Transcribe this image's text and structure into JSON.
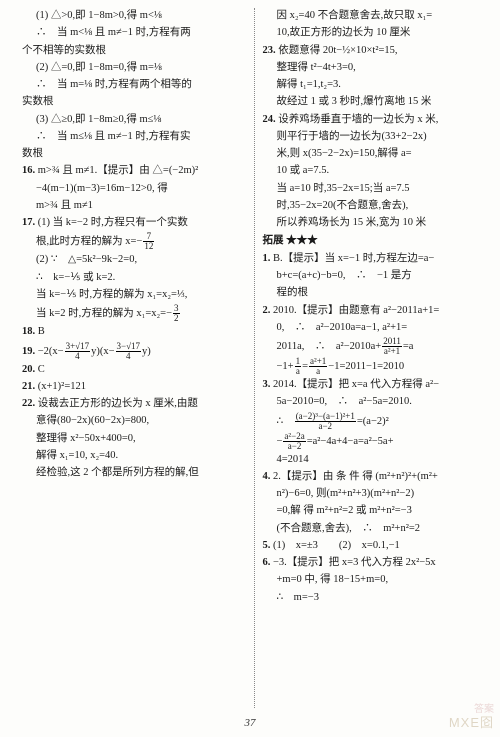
{
  "pageNumber": "37",
  "watermark1": "MXE囵",
  "watermark2": "答案",
  "leftColumn": [
    {
      "cls": "indent1",
      "text": "(1) △>0,即 1−8m>0,得 m<⅛"
    },
    {
      "cls": "indent1",
      "text": "∴　当 m<⅛ 且 m≠−1 时,方程有两"
    },
    {
      "cls": "",
      "text": "个不相等的实数根"
    },
    {
      "cls": "indent1",
      "text": "(2) △=0,即 1−8m=0,得 m=⅛"
    },
    {
      "cls": "indent1",
      "text": "∴　当 m=⅛ 时,方程有两个相等的"
    },
    {
      "cls": "",
      "text": "实数根"
    },
    {
      "cls": "indent1",
      "text": "(3) △≥0,即 1−8m≥0,得 m≤⅛"
    },
    {
      "cls": "indent1",
      "text": "∴　当 m≤⅛ 且 m≠−1 时,方程有实"
    },
    {
      "cls": "",
      "text": "数根"
    },
    {
      "cls": "",
      "html": "<span class='num'>16.</span> m>¾ 且 m≠1.【提示】由 △=(−2m)²"
    },
    {
      "cls": "indent1",
      "text": "−4(m−1)(m−3)=16m−12>0, 得"
    },
    {
      "cls": "indent1",
      "text": "m>¾ 且 m≠1"
    },
    {
      "cls": "",
      "html": "<span class='num'>17.</span> (1) 当 k=−2 时,方程只有一个实数"
    },
    {
      "cls": "indent1",
      "html": "根,此时方程的解为 x=−<span class='frac'><span class='n'>7</span><span class='d'>12</span></span>"
    },
    {
      "cls": "indent1",
      "text": "(2) ∵　△=5k²−9k−2=0,"
    },
    {
      "cls": "indent1",
      "text": "∴　k=−⅕ 或 k=2."
    },
    {
      "cls": "indent1",
      "text": "当 k=−⅕ 时,方程的解为 x₁=x₂=⅓,"
    },
    {
      "cls": "indent1",
      "html": "当 k=2 时,方程的解为 x₁=x₂=−<span class='frac'><span class='n'>3</span><span class='d'>2</span></span>"
    },
    {
      "cls": "",
      "html": "<span class='num'>18.</span> B"
    },
    {
      "cls": "",
      "html": "<span class='num'>19.</span> −2(x−<span class='frac'><span class='n'>3+√17</span><span class='d'>4</span></span>y)(x−<span class='frac'><span class='n'>3−√17</span><span class='d'>4</span></span>y)"
    },
    {
      "cls": "",
      "html": "<span class='num'>20.</span> C"
    },
    {
      "cls": "",
      "html": "<span class='num'>21.</span> (x+1)²=121"
    },
    {
      "cls": "",
      "html": "<span class='num'>22.</span> 设裁去正方形的边长为 x 厘米,由题"
    },
    {
      "cls": "indent1",
      "text": "意得(80−2x)(60−2x)=800,"
    },
    {
      "cls": "indent1",
      "text": "整理得 x²−50x+400=0,"
    },
    {
      "cls": "indent1",
      "text": "解得 x₁=10, x₂=40."
    },
    {
      "cls": "indent1",
      "text": "经检验,这 2 个都是所列方程的解,但"
    }
  ],
  "rightColumn": [
    {
      "cls": "indent1",
      "text": "因 x₂=40 不合题意舍去,故只取 x₁="
    },
    {
      "cls": "indent1",
      "text": "10,故正方形的边长为 10 厘米"
    },
    {
      "cls": "",
      "html": "<span class='num'>23.</span> 依题意得 20t−½×10×t²=15,"
    },
    {
      "cls": "indent1",
      "text": "整理得 t²−4t+3=0,"
    },
    {
      "cls": "indent1",
      "text": "解得 t₁=1,t₂=3."
    },
    {
      "cls": "indent1",
      "text": "故经过 1 或 3 秒时,爆竹离地 15 米"
    },
    {
      "cls": "",
      "html": "<span class='num'>24.</span> 设养鸡场垂直于墙的一边长为 x 米,"
    },
    {
      "cls": "indent1",
      "text": "则平行于墙的一边长为(33+2−2x)"
    },
    {
      "cls": "indent1",
      "text": "米,则 x(35−2−2x)=150,解得 a="
    },
    {
      "cls": "indent1",
      "text": "10 或 a=7.5."
    },
    {
      "cls": "indent1",
      "text": "当 a=10 时,35−2x=15;当 a=7.5"
    },
    {
      "cls": "indent1",
      "text": "时,35−2x=20(不合题意,舍去),"
    },
    {
      "cls": "indent1",
      "text": "所以养鸡场长为 15 米,宽为 10 米"
    },
    {
      "cls": "section-hdr",
      "text": "拓展 ★★★"
    },
    {
      "cls": "",
      "html": "<span class='num'>1.</span> B.【提示】当 x=−1 时,方程左边=a−"
    },
    {
      "cls": "indent1",
      "text": "b+c=(a+c)−b=0,　∴　−1 是方"
    },
    {
      "cls": "indent1",
      "text": "程的根"
    },
    {
      "cls": "",
      "html": "<span class='num'>2.</span> 2010.【提示】由题意有 a²−2011a+1="
    },
    {
      "cls": "indent1",
      "text": "0,　∴　a²−2010a=a−1, a²+1="
    },
    {
      "cls": "indent1",
      "html": "2011a,　∴　a²−2010a+<span class='frac'><span class='n'>2011</span><span class='d'>a²+1</span></span>=a"
    },
    {
      "cls": "indent1",
      "html": "−1+<span class='frac'><span class='n'>1</span><span class='d'>a</span></span>=<span class='frac'><span class='n'>a²+1</span><span class='d'>a</span></span>−1=2011−1=2010"
    },
    {
      "cls": "",
      "html": "<span class='num'>3.</span> 2014.【提示】把 x=a 代入方程得 a²−"
    },
    {
      "cls": "indent1",
      "text": "5a−2010=0,　∴　a²−5a=2010."
    },
    {
      "cls": "indent1",
      "html": "∴　<span class='frac'><span class='n'>(a−2)³−(a−1)²+1</span><span class='d'>a−2</span></span>=(a−2)²"
    },
    {
      "cls": "indent1",
      "html": "−<span class='frac'><span class='n'>a²−2a</span><span class='d'>a−2</span></span>=a²−4a+4−a=a²−5a+"
    },
    {
      "cls": "indent1",
      "text": "4=2014"
    },
    {
      "cls": "",
      "html": "<span class='num'>4.</span> 2.【提示】由 条 件 得 (m²+n²)²+(m²+"
    },
    {
      "cls": "indent1",
      "text": "n²)−6=0, 则(m²+n²+3)(m²+n²−2)"
    },
    {
      "cls": "indent1",
      "text": "=0,解 得 m²+n²=2 或 m²+n²=−3"
    },
    {
      "cls": "indent1",
      "text": "(不合题意,舍去),　∴　m²+n²=2"
    },
    {
      "cls": "",
      "html": "<span class='num'>5.</span> (1)　x=±3　　(2)　x=0.1,−1"
    },
    {
      "cls": "",
      "html": "<span class='num'>6.</span> −3.【提示】把 x=3 代入方程 2x²−5x"
    },
    {
      "cls": "indent1",
      "text": "+m=0 中, 得 18−15+m=0,"
    },
    {
      "cls": "indent1",
      "text": "∴　m=−3"
    }
  ]
}
